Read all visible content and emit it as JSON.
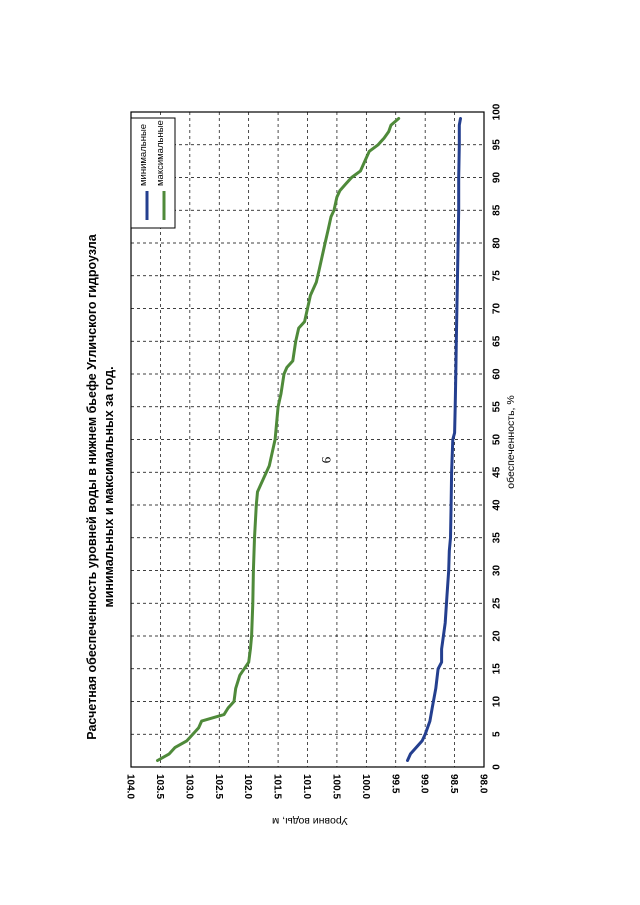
{
  "page": {
    "number": "9"
  },
  "chart_data": {
    "type": "line",
    "title_line1": "Расчетная обеспеченность уровней воды в нижнем бьефе Угличского гидроузла",
    "title_line2": "минимальных и максимальных за год.",
    "xlabel": "обеспеченность, %",
    "ylabel": "Уровни воды, м",
    "xlim": [
      0,
      100
    ],
    "ylim": [
      98.0,
      104.0
    ],
    "x_ticks": [
      "0",
      "5",
      "10",
      "15",
      "20",
      "25",
      "30",
      "35",
      "40",
      "45",
      "50",
      "55",
      "60",
      "65",
      "70",
      "75",
      "80",
      "85",
      "90",
      "95",
      "100"
    ],
    "y_ticks": [
      "104.0",
      "103.5",
      "103.0",
      "102.5",
      "102.0",
      "101.5",
      "101.0",
      "100.5",
      "100.0",
      "99.5",
      "99.0",
      "98.5",
      "98.0"
    ],
    "y_tick_values": [
      104.0,
      103.5,
      103.0,
      102.5,
      102.0,
      101.5,
      101.0,
      100.5,
      100.0,
      99.5,
      99.0,
      98.5,
      98.0
    ],
    "grid": true,
    "legend_position": "top-right",
    "series": [
      {
        "name": "минимальные",
        "color": "#243f8f",
        "points": [
          [
            1,
            99.3
          ],
          [
            2,
            99.25
          ],
          [
            3,
            99.15
          ],
          [
            4,
            99.05
          ],
          [
            5,
            99.0
          ],
          [
            7,
            98.92
          ],
          [
            9,
            98.88
          ],
          [
            12,
            98.82
          ],
          [
            15,
            98.78
          ],
          [
            16,
            98.72
          ],
          [
            18,
            98.72
          ],
          [
            22,
            98.66
          ],
          [
            26,
            98.63
          ],
          [
            30,
            98.6
          ],
          [
            33,
            98.59
          ],
          [
            35,
            98.57
          ],
          [
            40,
            98.56
          ],
          [
            45,
            98.55
          ],
          [
            50,
            98.53
          ],
          [
            51,
            98.5
          ],
          [
            55,
            98.49
          ],
          [
            60,
            98.48
          ],
          [
            65,
            98.47
          ],
          [
            70,
            98.46
          ],
          [
            75,
            98.45
          ],
          [
            80,
            98.44
          ],
          [
            85,
            98.43
          ],
          [
            90,
            98.43
          ],
          [
            95,
            98.42
          ],
          [
            98,
            98.42
          ],
          [
            99,
            98.4
          ]
        ]
      },
      {
        "name": "максимальные",
        "color": "#4f8a3a",
        "points": [
          [
            1,
            103.55
          ],
          [
            2,
            103.35
          ],
          [
            3,
            103.25
          ],
          [
            4,
            103.05
          ],
          [
            5,
            102.95
          ],
          [
            6,
            102.85
          ],
          [
            7,
            102.8
          ],
          [
            8,
            102.42
          ],
          [
            9,
            102.35
          ],
          [
            10,
            102.25
          ],
          [
            12,
            102.22
          ],
          [
            14,
            102.15
          ],
          [
            16,
            102.0
          ],
          [
            18,
            101.97
          ],
          [
            20,
            101.95
          ],
          [
            25,
            101.93
          ],
          [
            30,
            101.92
          ],
          [
            35,
            101.9
          ],
          [
            40,
            101.87
          ],
          [
            42,
            101.85
          ],
          [
            43,
            101.8
          ],
          [
            44,
            101.75
          ],
          [
            46,
            101.65
          ],
          [
            48,
            101.6
          ],
          [
            50,
            101.55
          ],
          [
            55,
            101.5
          ],
          [
            57,
            101.45
          ],
          [
            60,
            101.4
          ],
          [
            61,
            101.35
          ],
          [
            62,
            101.25
          ],
          [
            65,
            101.2
          ],
          [
            67,
            101.15
          ],
          [
            68,
            101.05
          ],
          [
            70,
            101.0
          ],
          [
            72,
            100.95
          ],
          [
            74,
            100.85
          ],
          [
            76,
            100.8
          ],
          [
            78,
            100.75
          ],
          [
            80,
            100.7
          ],
          [
            82,
            100.65
          ],
          [
            84,
            100.6
          ],
          [
            85,
            100.55
          ],
          [
            87,
            100.5
          ],
          [
            88,
            100.45
          ],
          [
            89,
            100.35
          ],
          [
            90,
            100.25
          ],
          [
            91,
            100.1
          ],
          [
            92,
            100.05
          ],
          [
            93,
            100.0
          ],
          [
            94,
            99.95
          ],
          [
            95,
            99.8
          ],
          [
            96,
            99.7
          ],
          [
            97,
            99.62
          ],
          [
            98,
            99.58
          ],
          [
            99,
            99.45
          ]
        ]
      }
    ]
  }
}
